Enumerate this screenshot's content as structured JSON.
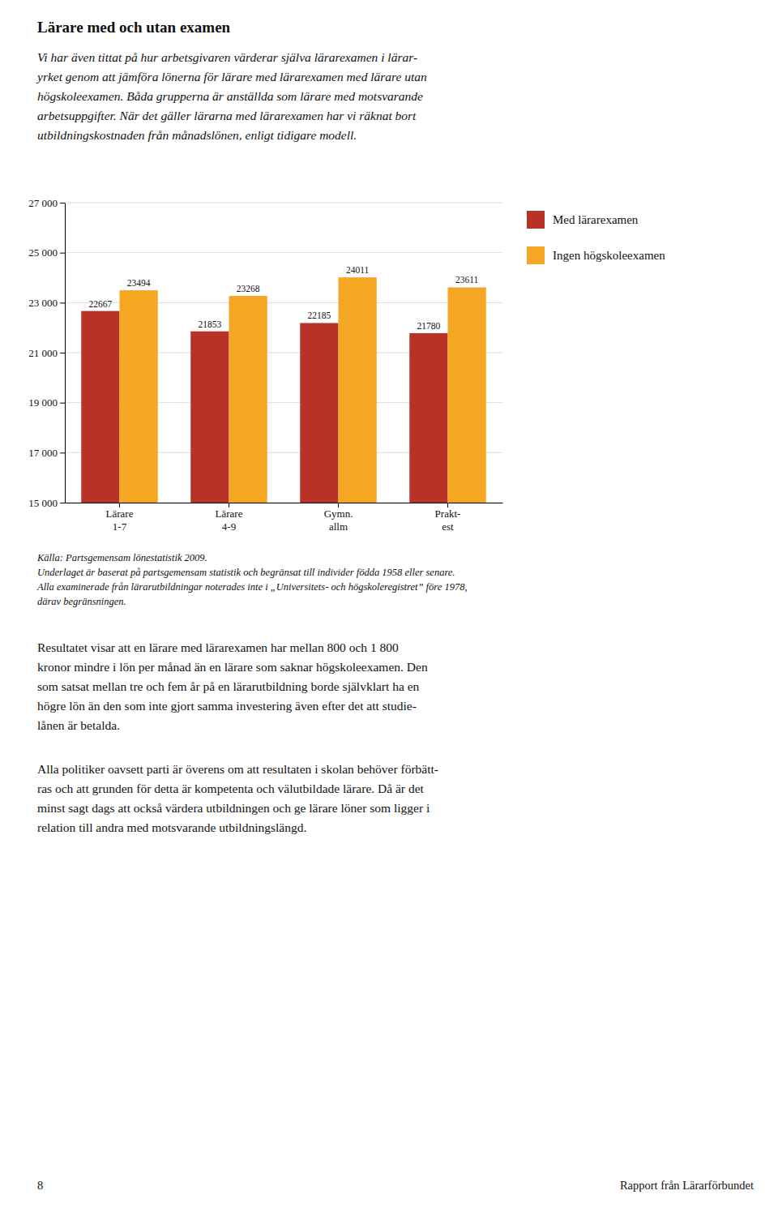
{
  "chart_data": {
    "type": "bar",
    "title": "Lärare med och utan examen",
    "subtitle": "Vi har även tittat på hur arbetsgivaren värderar själva lärarexamen i lärar-\nyrket genom att jämföra lönerna för lärare med lärarexamen med lärare utan\nhögskoleexamen. Båda grupperna är anställda som lärare med motsvarande\narbetsuppgifter. När det gäller lärarna med lärarexamen har vi räknat bort\nutbildningskostnaden från månadslönen, enligt tidigare modell.",
    "categories": [
      "Lärare\n1-7",
      "Lärare\n4-9",
      "Gymn.\nallm",
      "Prakt-\nest"
    ],
    "series": [
      {
        "name": "Med lärarexamen",
        "color": "#b83228",
        "values": [
          22667,
          21853,
          22185,
          21780
        ]
      },
      {
        "name": "Ingen högskoleexamen",
        "color": "#f5a623",
        "values": [
          23494,
          23268,
          24011,
          23611
        ]
      }
    ],
    "ylim": [
      15000,
      27000
    ],
    "yticks": [
      {
        "value": 15000,
        "label": "15 000"
      },
      {
        "value": 17000,
        "label": "17 000"
      },
      {
        "value": 19000,
        "label": "19 000"
      },
      {
        "value": 21000,
        "label": "21 000"
      },
      {
        "value": 23000,
        "label": "23 000"
      },
      {
        "value": 25000,
        "label": "25 000"
      },
      {
        "value": 27000,
        "label": "27 000"
      }
    ],
    "grid": true,
    "data_labels": true,
    "legend": "right",
    "annotations": [
      "Källa: Partsgemensam lönestatistik 2009.",
      "Underlaget är baserat på partsgemensam statistik och begränsat till individer födda 1958 eller senare.",
      "Alla examinerade från lärarutbildningar noterades inte i „Universitets- och högskoleregistret” före 1978,",
      "därav begränsningen.",
      "Resultatet visar att en lärare med lärarexamen har mellan 800 och 1 800\nkronor mindre i lön per månad än en lärare som saknar högskoleexamen. Den\nsom satsat mellan tre och fem år på en lärarutbildning borde självklart ha en\nhögre lön än den som inte gjort samma investering även efter det att studie-\nlånen är betalda.",
      "Alla politiker oavsett parti är överens om att resultaten i skolan behöver förbätt-\nras och att grunden för detta är kompetenta och välutbildade lärare. Då är det\nminst sagt dags att också värdera utbildningen och ge lärare löner som ligger i\nrelation till andra med motsvarande utbildningslängd.",
      "8",
      "Rapport från Lärarförbundet"
    ]
  }
}
